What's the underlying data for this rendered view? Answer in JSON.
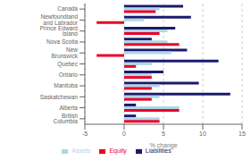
{
  "chart_data": {
    "type": "bar",
    "orientation": "horizontal",
    "categories": [
      "Canada",
      "Newfoundland and Labrador",
      "Prince Edward Island",
      "Nova Scotia",
      "New Brunswick",
      "Quebec",
      "Ontario",
      "Manitoba",
      "Saskatchewan",
      "Alberta",
      "British Columbia"
    ],
    "series": [
      {
        "name": "Liabilities",
        "color": "#1a1a6e",
        "values": [
          7.5,
          8.5,
          6.5,
          3.5,
          8.0,
          12.0,
          5.0,
          9.5,
          13.5,
          1.5,
          1.5
        ]
      },
      {
        "name": "Assets",
        "color": "#add8e6",
        "values": [
          4.5,
          2.5,
          5.5,
          5.5,
          6.0,
          3.5,
          3.5,
          4.5,
          4.5,
          7.0,
          4.5
        ]
      },
      {
        "name": "Equity",
        "color": "#e8002a",
        "values": [
          4.0,
          -3.5,
          4.5,
          7.0,
          -3.5,
          1.5,
          3.5,
          3.5,
          3.5,
          7.0,
          4.5
        ]
      }
    ],
    "xlabel": "% change",
    "xlim": [
      -5,
      15
    ],
    "xticks": [
      -5,
      0,
      5,
      10,
      15
    ],
    "grid": true,
    "legend": "bottom"
  }
}
